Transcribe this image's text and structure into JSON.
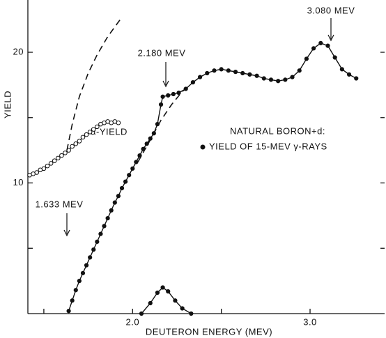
{
  "chart_data": {
    "type": "scatter",
    "x_label": "DEUTERON ENERGY (MEV)",
    "y_label": "YIELD",
    "xlim": [
      1.41,
      3.42
    ],
    "ylim": [
      0,
      24
    ],
    "xticks": [
      {
        "value": 2,
        "label": "2.0"
      },
      {
        "value": 3,
        "label": "3.0"
      }
    ],
    "minor_xticks": [
      1.5,
      2.5
    ],
    "yticks": [
      10,
      20
    ],
    "minor_yticks": [
      5,
      15
    ],
    "annotations": [
      "3.080 MEV",
      "2.180 MEV",
      "1.633 MEV",
      "NATURAL BORON+d:"
    ],
    "series": [
      {
        "name": "YIELD OF 15-MEV γ-RAYS",
        "color": "#111111",
        "marker": "filled",
        "line": "solid",
        "x": [
          1.64,
          1.66,
          1.68,
          1.7,
          1.72,
          1.74,
          1.76,
          1.78,
          1.8,
          1.82,
          1.84,
          1.86,
          1.88,
          1.9,
          1.92,
          1.94,
          1.96,
          1.98,
          2.0,
          2.02,
          2.04,
          2.06,
          2.08,
          2.1,
          2.12,
          2.14,
          2.16,
          2.17,
          2.2,
          2.23,
          2.26,
          2.3,
          2.34,
          2.38,
          2.42,
          2.46,
          2.5,
          2.54,
          2.58,
          2.62,
          2.66,
          2.7,
          2.74,
          2.78,
          2.82,
          2.86,
          2.9,
          2.94,
          2.98,
          3.02,
          3.06,
          3.1,
          3.14,
          3.18,
          3.22,
          3.26
        ],
        "values": [
          0.2,
          1.0,
          1.8,
          2.5,
          3.1,
          3.7,
          4.3,
          4.9,
          5.5,
          6.1,
          6.7,
          7.3,
          7.9,
          8.5,
          9.0,
          9.6,
          10.1,
          10.6,
          11.1,
          11.6,
          12.1,
          12.6,
          13.0,
          13.4,
          13.8,
          14.5,
          16.0,
          16.6,
          16.7,
          16.8,
          16.9,
          17.2,
          17.7,
          18.1,
          18.4,
          18.6,
          18.7,
          18.6,
          18.5,
          18.4,
          18.3,
          18.2,
          18.0,
          17.9,
          17.8,
          17.9,
          18.1,
          18.6,
          19.5,
          20.3,
          20.7,
          20.5,
          19.6,
          18.7,
          18.3,
          18.0
        ]
      },
      {
        "name": "α-YIELD",
        "color": "#111111",
        "marker": "open",
        "line": "solid",
        "x": [
          1.42,
          1.44,
          1.46,
          1.48,
          1.5,
          1.52,
          1.54,
          1.56,
          1.58,
          1.6,
          1.62,
          1.64,
          1.66,
          1.68,
          1.7,
          1.72,
          1.74,
          1.76,
          1.78,
          1.8,
          1.82,
          1.84,
          1.86,
          1.88,
          1.9,
          1.92
        ],
        "values": [
          10.6,
          10.7,
          10.8,
          11.0,
          11.1,
          11.3,
          11.5,
          11.7,
          11.9,
          12.1,
          12.3,
          12.5,
          12.8,
          13.0,
          13.2,
          13.5,
          13.7,
          13.9,
          14.1,
          14.3,
          14.5,
          14.6,
          14.7,
          14.6,
          14.7,
          14.6
        ]
      },
      {
        "color": "#111111",
        "marker": "none",
        "line": "dashed",
        "x": [
          1.63,
          1.66,
          1.7,
          1.75,
          1.8,
          1.86,
          1.93
        ],
        "values": [
          12.5,
          14.5,
          16.6,
          18.4,
          19.8,
          21.2,
          22.5
        ]
      },
      {
        "color": "#111111",
        "marker": "none",
        "line": "dashed",
        "x": [
          2.03,
          2.1,
          2.16,
          2.22,
          2.28,
          2.32
        ],
        "values": [
          11.6,
          13.3,
          14.8,
          16.0,
          17.0,
          17.4
        ]
      },
      {
        "color": "#111111",
        "marker": "filled",
        "line": "solid",
        "x": [
          2.05,
          2.1,
          2.14,
          2.17,
          2.2,
          2.24,
          2.28,
          2.33
        ],
        "values": [
          0,
          0.8,
          1.6,
          2.0,
          1.7,
          1.0,
          0.4,
          0
        ]
      }
    ]
  }
}
